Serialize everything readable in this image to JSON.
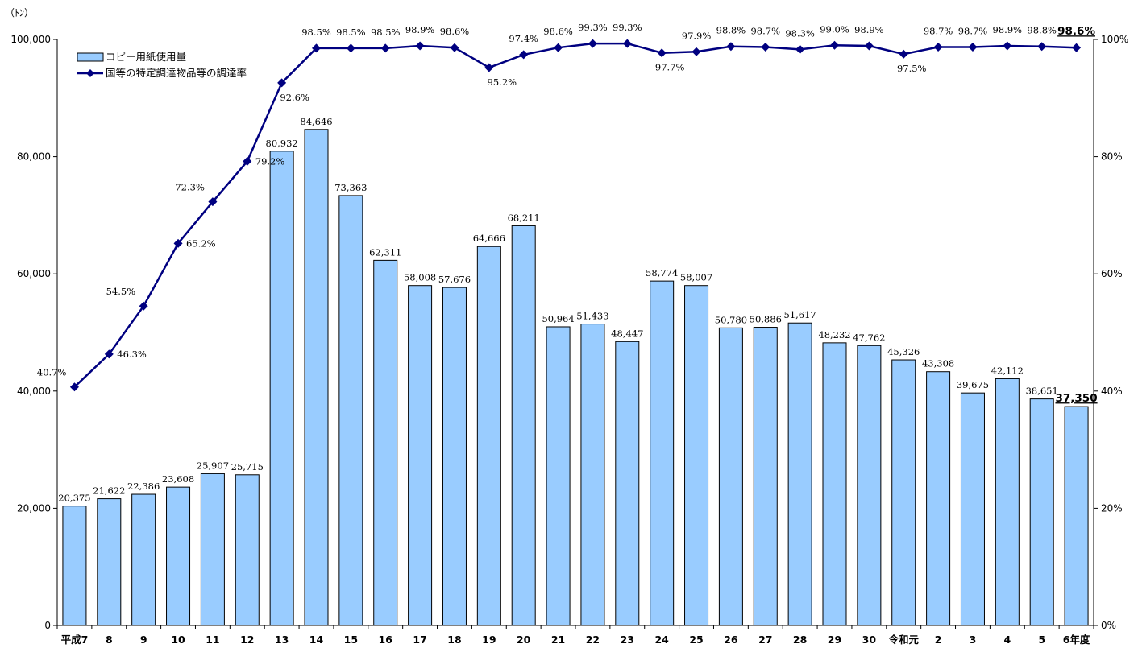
{
  "chart_data": {
    "type": "bar",
    "unit_label": "（ﾄﾝ）",
    "categories": [
      "平成7",
      "8",
      "9",
      "10",
      "11",
      "12",
      "13",
      "14",
      "15",
      "16",
      "17",
      "18",
      "19",
      "20",
      "21",
      "22",
      "23",
      "24",
      "25",
      "26",
      "27",
      "28",
      "29",
      "30",
      "令和元",
      "2",
      "3",
      "4",
      "5",
      "6年度"
    ],
    "series": [
      {
        "name": "コピー用紙使用量",
        "type": "bar",
        "axis": "left",
        "color": "#99ccff",
        "values": [
          20375,
          21622,
          22386,
          23608,
          25907,
          25715,
          80932,
          84646,
          73363,
          62311,
          58008,
          57676,
          64666,
          68211,
          50964,
          51433,
          48447,
          58774,
          58007,
          50780,
          50886,
          51617,
          48232,
          47762,
          45326,
          43308,
          39675,
          42112,
          38651,
          37350
        ],
        "labels": [
          "20,375",
          "21,622",
          "22,386",
          "23,608",
          "25,907",
          "25,715",
          "80,932",
          "84,646",
          "73,363",
          "62,311",
          "58,008",
          "57,676",
          "64,666",
          "68,211",
          "50,964",
          "51,433",
          "48,447",
          "58,774",
          "58,007",
          "50,780",
          "50,886",
          "51,617",
          "48,232",
          "47,762",
          "45,326",
          "43,308",
          "39,675",
          "42,112",
          "38,651",
          "37,350"
        ]
      },
      {
        "name": "国等の特定調達物品等の調達率",
        "type": "line",
        "axis": "right",
        "color": "#000080",
        "values": [
          40.7,
          46.3,
          54.5,
          65.2,
          72.3,
          79.2,
          92.6,
          98.5,
          98.5,
          98.5,
          98.9,
          98.6,
          95.2,
          97.4,
          98.6,
          99.3,
          99.3,
          97.7,
          97.9,
          98.8,
          98.7,
          98.3,
          99.0,
          98.9,
          97.5,
          98.7,
          98.7,
          98.9,
          98.8,
          98.6
        ],
        "labels": [
          "40.7%",
          "46.3%",
          "54.5%",
          "65.2%",
          "72.3%",
          "79.2%",
          "92.6%",
          "98.5%",
          "98.5%",
          "98.5%",
          "98.9%",
          "98.6%",
          "95.2%",
          "97.4%",
          "98.6%",
          "99.3%",
          "99.3%",
          "97.7%",
          "97.9%",
          "98.8%",
          "98.7%",
          "98.3%",
          "99.0%",
          "98.9%",
          "97.5%",
          "98.7%",
          "98.7%",
          "98.9%",
          "98.8%",
          "98.6%"
        ]
      }
    ],
    "y_left": {
      "min": 0,
      "max": 100000,
      "ticks": [
        0,
        20000,
        40000,
        60000,
        80000,
        100000
      ],
      "tick_labels": [
        "0",
        "20,000",
        "40,000",
        "60,000",
        "80,000",
        "100,000"
      ]
    },
    "y_right": {
      "min": 0,
      "max": 100,
      "ticks": [
        0,
        20,
        40,
        60,
        80,
        100
      ],
      "tick_labels": [
        "0%",
        "20%",
        "40%",
        "60%",
        "80%",
        "100%"
      ]
    },
    "legend_position": "top-left",
    "grid": false,
    "highlight_last": true
  }
}
